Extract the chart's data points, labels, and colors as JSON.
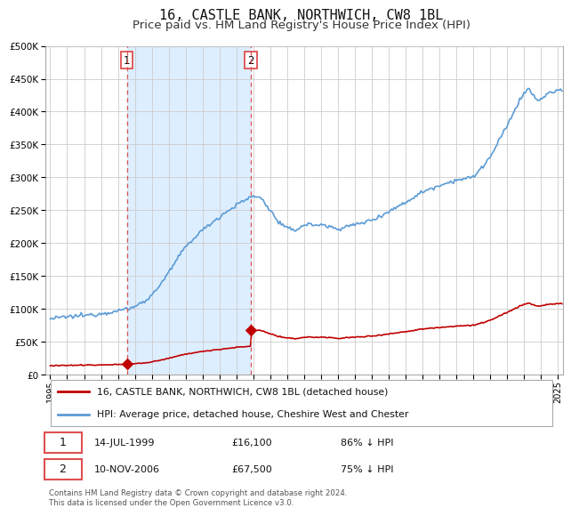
{
  "title": "16, CASTLE BANK, NORTHWICH, CW8 1BL",
  "subtitle": "Price paid vs. HM Land Registry's House Price Index (HPI)",
  "title_fontsize": 11,
  "subtitle_fontsize": 9.5,
  "ylim": [
    0,
    500000
  ],
  "xlim_start": 1994.7,
  "xlim_end": 2025.3,
  "hpi_color": "#5b9bd5",
  "price_color": "#c00000",
  "purchase1_date": 1999.535,
  "purchase1_price": 16100,
  "purchase2_date": 2006.86,
  "purchase2_price": 67500,
  "vline_color": "#e05050",
  "shade_color": "#ddeeff",
  "grid_color": "#cccccc",
  "background_color": "#ffffff",
  "legend_label_red": "16, CASTLE BANK, NORTHWICH, CW8 1BL (detached house)",
  "legend_label_blue": "HPI: Average price, detached house, Cheshire West and Chester",
  "table_row1": [
    "1",
    "14-JUL-1999",
    "£16,100",
    "86% ↓ HPI"
  ],
  "table_row2": [
    "2",
    "10-NOV-2006",
    "£67,500",
    "75% ↓ HPI"
  ],
  "footer": "Contains HM Land Registry data © Crown copyright and database right 2024.\nThis data is licensed under the Open Government Licence v3.0."
}
